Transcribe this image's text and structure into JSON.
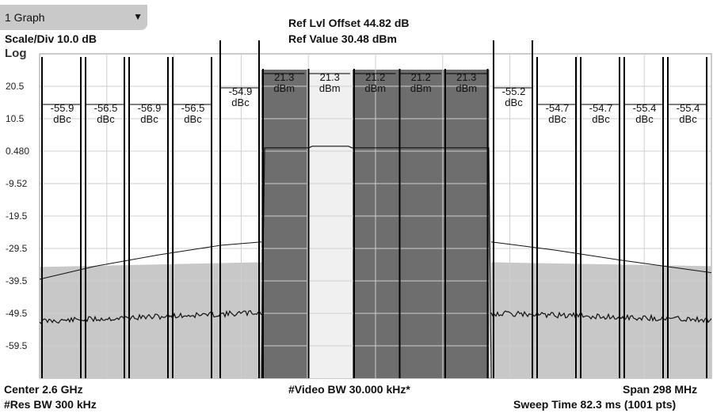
{
  "dropdown": {
    "label": "1 Graph",
    "caret": "▼"
  },
  "header": {
    "ref_offset": "Ref Lvl Offset 44.82 dB",
    "ref_value": "Ref Value 30.48 dBm",
    "scale": "Scale/Div 10.0 dB",
    "log": "Log"
  },
  "footer": {
    "center": "Center 2.6 GHz",
    "res_bw": "#Res BW 300 kHz",
    "video_bw": "#Video BW 30.000 kHz*",
    "span": "Span 298 MHz",
    "sweep": "Sweep Time 82.3 ms (1001 pts)"
  },
  "chart_data": {
    "type": "line",
    "y_ticks": [
      "20.5",
      "10.5",
      "0.480",
      "-9.52",
      "-19.5",
      "-29.5",
      "-39.5",
      "-49.5",
      "-59.5"
    ],
    "ylim": [
      -69.52,
      30.48
    ],
    "grid": true,
    "carriers": [
      {
        "value": "21.3",
        "unit": "dBm",
        "level": 1.5,
        "shaded": true
      },
      {
        "value": "21.3",
        "unit": "dBm",
        "level": 1.5,
        "shaded": false
      },
      {
        "value": "21.2",
        "unit": "dBm",
        "level": 1.5,
        "shaded": true
      },
      {
        "value": "21.2",
        "unit": "dBm",
        "level": 1.5,
        "shaded": true
      },
      {
        "value": "21.3",
        "unit": "dBm",
        "level": 1.5,
        "shaded": true
      }
    ],
    "offsets_left": [
      {
        "value": "-55.9",
        "unit": "dBc"
      },
      {
        "value": "-56.5",
        "unit": "dBc"
      },
      {
        "value": "-56.9",
        "unit": "dBc"
      },
      {
        "value": "-56.5",
        "unit": "dBc"
      },
      {
        "value": "-54.9",
        "unit": "dBc"
      }
    ],
    "offsets_right": [
      {
        "value": "-55.2",
        "unit": "dBc"
      },
      {
        "value": "-54.7",
        "unit": "dBc"
      },
      {
        "value": "-54.7",
        "unit": "dBc"
      },
      {
        "value": "-55.4",
        "unit": "dBc"
      },
      {
        "value": "-55.4",
        "unit": "dBc"
      }
    ],
    "noise_floor_dBm": -50.5,
    "mask_level_dBm": -34.5,
    "colors": {
      "carrier_fill": "#6e6e6e",
      "carrier_light": "#f0f0f0",
      "mask_fill": "#c8c8c8",
      "grid": "#cfcfcf",
      "trace": "#111111"
    }
  }
}
